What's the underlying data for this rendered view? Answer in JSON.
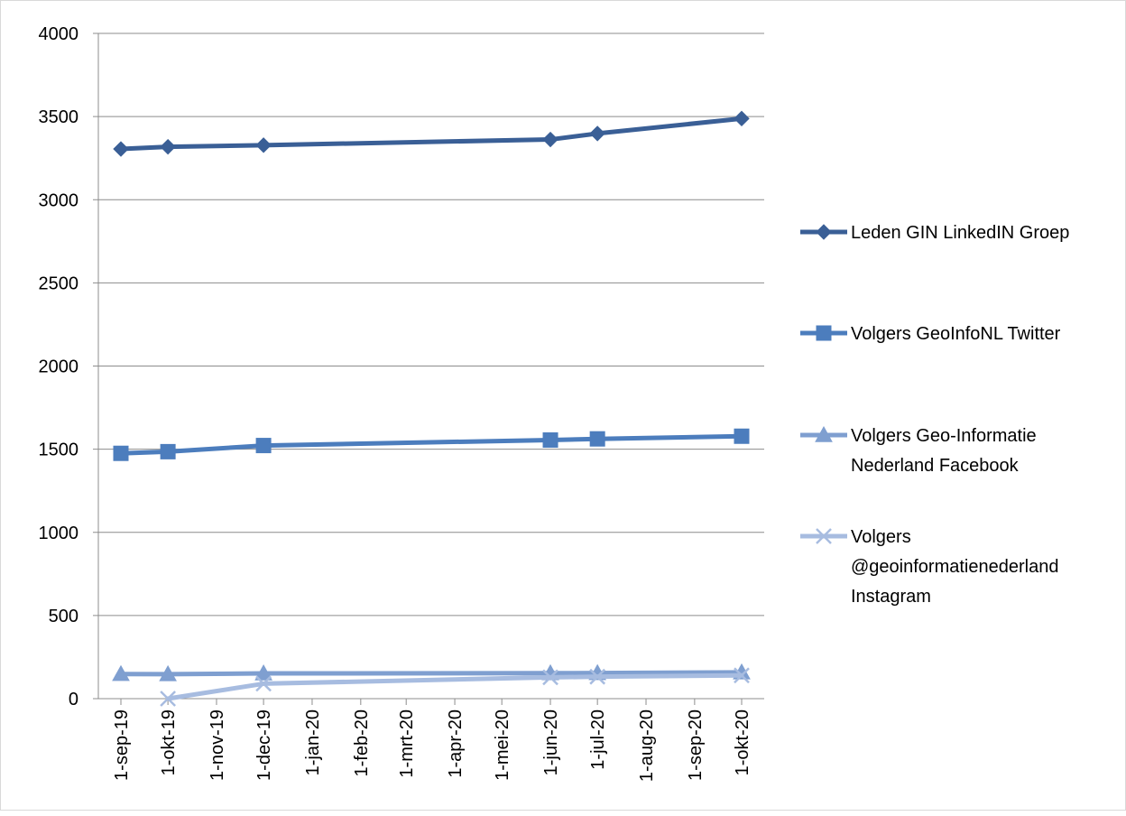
{
  "chart_data": {
    "type": "line",
    "x": [
      "2019-09-01",
      "2019-10-01",
      "2019-12-01",
      "2020-06-01",
      "2020-07-01",
      "2020-10-01"
    ],
    "x_tick_labels": [
      "1-sep-19",
      "1-okt-19",
      "1-nov-19",
      "1-dec-19",
      "1-jan-20",
      "1-feb-20",
      "1-mrt-20",
      "1-apr-20",
      "1-mei-20",
      "1-jun-20",
      "1-jul-20",
      "1-aug-20",
      "1-sep-20",
      "1-okt-20"
    ],
    "x_tick_dates": [
      "2019-09-01",
      "2019-10-01",
      "2019-11-01",
      "2019-12-01",
      "2020-01-01",
      "2020-02-01",
      "2020-03-01",
      "2020-04-01",
      "2020-05-01",
      "2020-06-01",
      "2020-07-01",
      "2020-08-01",
      "2020-09-01",
      "2020-10-01"
    ],
    "xlim": [
      "2019-09-01",
      "2020-10-01"
    ],
    "ylim": [
      0,
      4000
    ],
    "y_ticks": [
      0,
      500,
      1000,
      1500,
      2000,
      2500,
      3000,
      3500,
      4000
    ],
    "grid": "horizontal",
    "legend_position": "right",
    "series": [
      {
        "name": "Leden GIN LinkedIN Groep",
        "legend_lines": [
          "Leden GIN LinkedIN Groep"
        ],
        "marker": "diamond",
        "color": "#3a5f96",
        "values": [
          3305,
          3318,
          3328,
          3362,
          3398,
          3488
        ]
      },
      {
        "name": "Volgers GeoInfoNL Twitter",
        "legend_lines": [
          "Volgers GeoInfoNL Twitter"
        ],
        "marker": "square",
        "color": "#4c7dbd",
        "values": [
          1475,
          1485,
          1522,
          1555,
          1562,
          1578
        ]
      },
      {
        "name": "Volgers Geo-Informatie Nederland Facebook",
        "legend_lines": [
          "Volgers Geo-Informatie",
          "Nederland Facebook"
        ],
        "marker": "triangle",
        "color": "#7f9fd0",
        "values": [
          148,
          147,
          152,
          153,
          154,
          158
        ]
      },
      {
        "name": "Volgers @geoinformatienederland Instagram",
        "legend_lines": [
          "Volgers",
          "@geoinformatienederland",
          "Instagram"
        ],
        "marker": "x",
        "color": "#a7bce0",
        "values": [
          null,
          0,
          90,
          128,
          132,
          140
        ]
      }
    ]
  }
}
